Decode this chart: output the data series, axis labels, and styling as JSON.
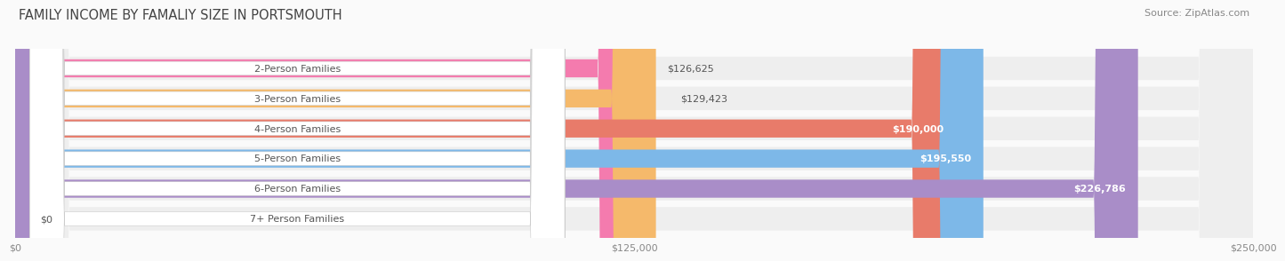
{
  "title": "FAMILY INCOME BY FAMALIY SIZE IN PORTSMOUTH",
  "source": "Source: ZipAtlas.com",
  "categories": [
    "2-Person Families",
    "3-Person Families",
    "4-Person Families",
    "5-Person Families",
    "6-Person Families",
    "7+ Person Families"
  ],
  "values": [
    126625,
    129423,
    190000,
    195550,
    226786,
    0
  ],
  "bar_colors": [
    "#F47BAE",
    "#F5B96B",
    "#E87B6A",
    "#7DB8E8",
    "#A98DC8",
    "#7DCFCF"
  ],
  "bar_bg_color": "#EEEEEE",
  "label_bg_color": "#FFFFFF",
  "value_labels": [
    "$126,625",
    "$129,423",
    "$190,000",
    "$195,550",
    "$226,786",
    "$0"
  ],
  "value_inside": [
    false,
    false,
    true,
    true,
    true,
    false
  ],
  "x_ticks": [
    0,
    125000,
    250000
  ],
  "x_tick_labels": [
    "$0",
    "$125,000",
    "$250,000"
  ],
  "xlim": [
    0,
    250000
  ],
  "title_fontsize": 10.5,
  "source_fontsize": 8,
  "bar_label_fontsize": 8,
  "value_fontsize": 8
}
